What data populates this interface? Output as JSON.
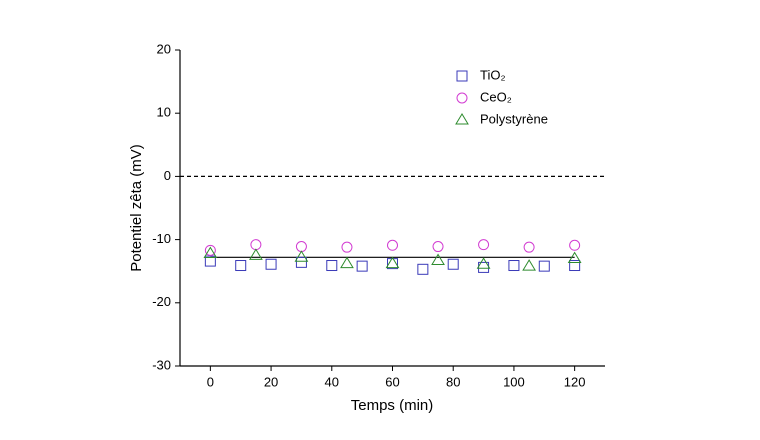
{
  "chart_data": {
    "type": "scatter",
    "x_label": "Temps (min)",
    "y_label": "Potentiel zêta (mV)",
    "xlim": [
      -10,
      130
    ],
    "ylim": [
      -30,
      20
    ],
    "xticks": [
      0,
      20,
      40,
      60,
      80,
      100,
      120
    ],
    "yticks": [
      -30,
      -20,
      -10,
      0,
      10,
      20
    ],
    "series": [
      {
        "name": "TiO₂",
        "color": "#3a3ab8",
        "marker": "square",
        "x": [
          0,
          10,
          20,
          30,
          40,
          50,
          60,
          70,
          80,
          90,
          100,
          110,
          120
        ],
        "values": [
          -13.4,
          -14.1,
          -13.9,
          -13.6,
          -14.1,
          -14.2,
          -13.8,
          -14.7,
          -13.9,
          -14.4,
          -14.1,
          -14.2,
          -14.1
        ]
      },
      {
        "name": "CeO₂",
        "color": "#d23cd2",
        "marker": "circle",
        "x": [
          0,
          15,
          30,
          45,
          60,
          75,
          90,
          105,
          120
        ],
        "values": [
          -11.7,
          -10.8,
          -11.1,
          -11.2,
          -10.9,
          -11.1,
          -10.8,
          -11.2,
          -10.9
        ]
      },
      {
        "name": "Polystyrène",
        "color": "#2e8b2e",
        "marker": "triangle",
        "x": [
          0,
          15,
          30,
          45,
          60,
          75,
          90,
          105,
          120
        ],
        "values": [
          -12.2,
          -12.5,
          -12.8,
          -13.8,
          -13.8,
          -13.3,
          -13.9,
          -14.2,
          -13.0
        ]
      }
    ],
    "reference_lines": [
      {
        "y": 0,
        "style": "dashed"
      },
      {
        "y": -12.8,
        "x": [
          0,
          120
        ],
        "style": "solid"
      }
    ]
  }
}
